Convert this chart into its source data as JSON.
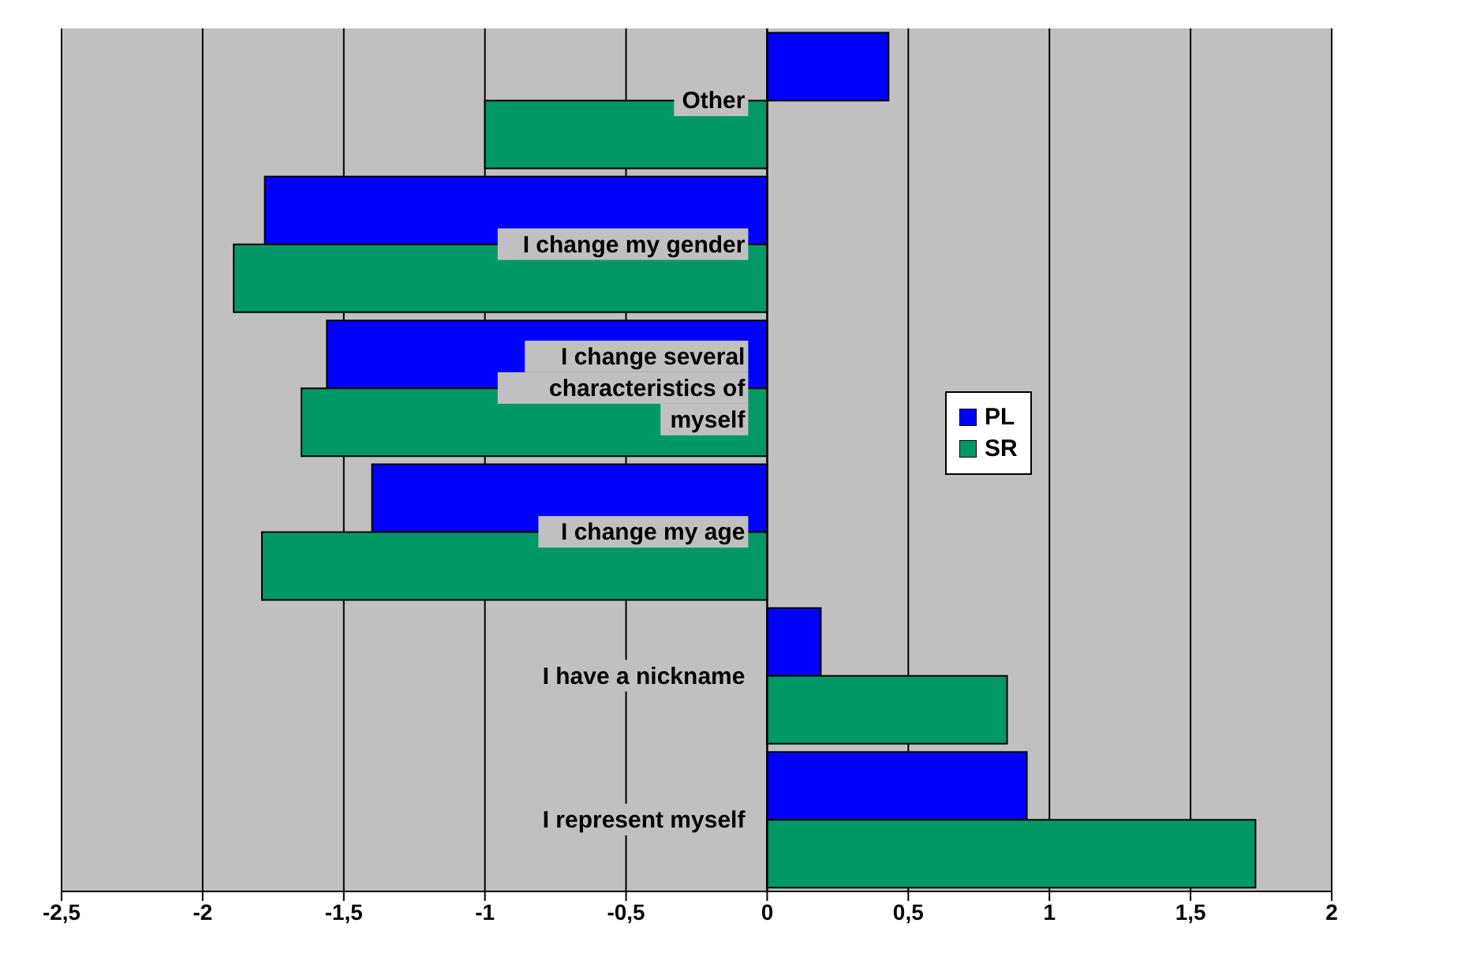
{
  "chart_data": {
    "type": "bar",
    "orientation": "horizontal",
    "categories": [
      "Other",
      "I change my gender",
      "I change several characteristics of myself",
      "I change my age",
      "I have a nickname",
      "I represent myself"
    ],
    "series": [
      {
        "name": "PL",
        "color": "#0000ff",
        "values": [
          0.43,
          -1.78,
          -1.56,
          -1.4,
          0.19,
          0.92
        ]
      },
      {
        "name": "SR",
        "color": "#009966",
        "values": [
          -1.0,
          -1.89,
          -1.65,
          -1.79,
          0.85,
          1.73
        ]
      }
    ],
    "xlim": [
      -2.5,
      2
    ],
    "xticks": [
      {
        "value": -2.5,
        "label": "-2,5"
      },
      -2,
      {
        "value": -1.5,
        "label": "-1,5"
      },
      -1,
      {
        "value": -0.5,
        "label": "-0,5"
      },
      0,
      {
        "value": 0.5,
        "label": "0,5"
      },
      1,
      {
        "value": 1.5,
        "label": "1,5"
      },
      2
    ],
    "grid": "x",
    "legend": "right"
  }
}
